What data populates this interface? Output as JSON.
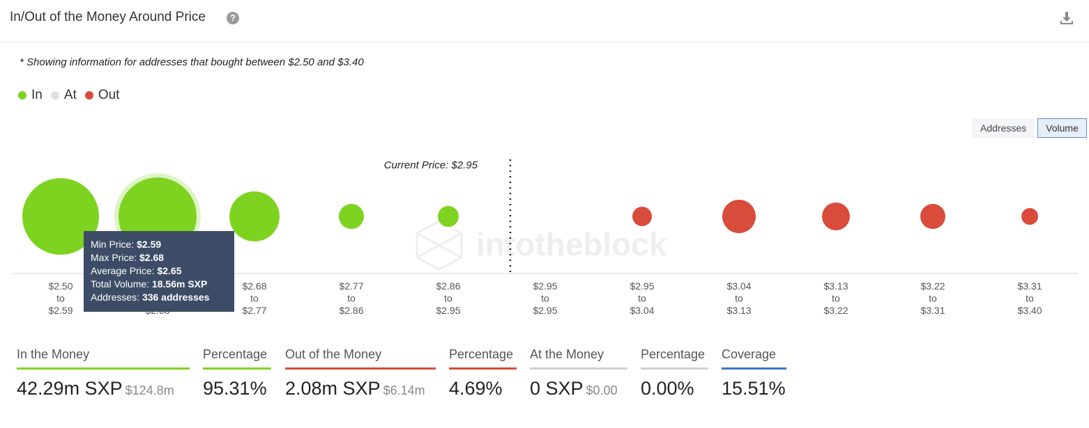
{
  "header": {
    "title": "In/Out of the Money Around Price",
    "help_icon": "question-circle-icon",
    "download_icon": "download-icon"
  },
  "note": "* Showing information for addresses that bought between $2.50 and $3.40",
  "legend": [
    {
      "label": "In",
      "color": "#7ed321"
    },
    {
      "label": "At",
      "color": "#e0e0e0"
    },
    {
      "label": "Out",
      "color": "#d94b3a"
    }
  ],
  "toggle": {
    "addresses_label": "Addresses",
    "volume_label": "Volume",
    "active": "Volume"
  },
  "chart_data": {
    "type": "bubble",
    "current_price_label": "Current Price: $2.95",
    "current_price_after_index": 4,
    "watermark": "intotheblock",
    "categories": [
      {
        "from": "$2.50",
        "to": "$2.59",
        "status": "in",
        "size": 55
      },
      {
        "from": "$2.59",
        "to": "$2.68",
        "status": "in",
        "size": 56,
        "highlighted": true
      },
      {
        "from": "$2.68",
        "to": "$2.77",
        "status": "in",
        "size": 36
      },
      {
        "from": "$2.77",
        "to": "$2.86",
        "status": "in",
        "size": 18
      },
      {
        "from": "$2.86",
        "to": "$2.95",
        "status": "in",
        "size": 15
      },
      {
        "from": "$2.95",
        "to": "$2.95",
        "status": "at",
        "size": 0
      },
      {
        "from": "$2.95",
        "to": "$3.04",
        "status": "out",
        "size": 14
      },
      {
        "from": "$3.04",
        "to": "$3.13",
        "status": "out",
        "size": 24
      },
      {
        "from": "$3.13",
        "to": "$3.22",
        "status": "out",
        "size": 20
      },
      {
        "from": "$3.22",
        "to": "$3.31",
        "status": "out",
        "size": 18
      },
      {
        "from": "$3.31",
        "to": "$3.40",
        "status": "out",
        "size": 12
      }
    ],
    "to_word": "to",
    "colors": {
      "in": "#7ed321",
      "at": "#e0e0e0",
      "out": "#d94b3a"
    }
  },
  "tooltip": {
    "rows": [
      {
        "label": "Min Price:",
        "value": "$2.59"
      },
      {
        "label": "Max Price:",
        "value": "$2.68"
      },
      {
        "label": "Average Price:",
        "value": "$2.65"
      },
      {
        "label": "Total Volume:",
        "value": "18.56m SXP"
      },
      {
        "label": "Addresses:",
        "value": "336 addresses"
      }
    ]
  },
  "stats": [
    {
      "label": "In the Money",
      "value": "42.29m SXP",
      "sub": "$124.8m",
      "color": "#7ed321"
    },
    {
      "label": "Percentage",
      "value": "95.31%",
      "sub": "",
      "color": "#7ed321"
    },
    {
      "label": "Out of the Money",
      "value": "2.08m SXP",
      "sub": "$6.14m",
      "color": "#d94b3a"
    },
    {
      "label": "Percentage",
      "value": "4.69%",
      "sub": "",
      "color": "#d94b3a"
    },
    {
      "label": "At the Money",
      "value": "0 SXP",
      "sub": "$0.00",
      "color": "#d0d0d0"
    },
    {
      "label": "Percentage",
      "value": "0.00%",
      "sub": "",
      "color": "#d0d0d0"
    },
    {
      "label": "Coverage",
      "value": "15.51%",
      "sub": "",
      "color": "#3f73c8"
    }
  ]
}
